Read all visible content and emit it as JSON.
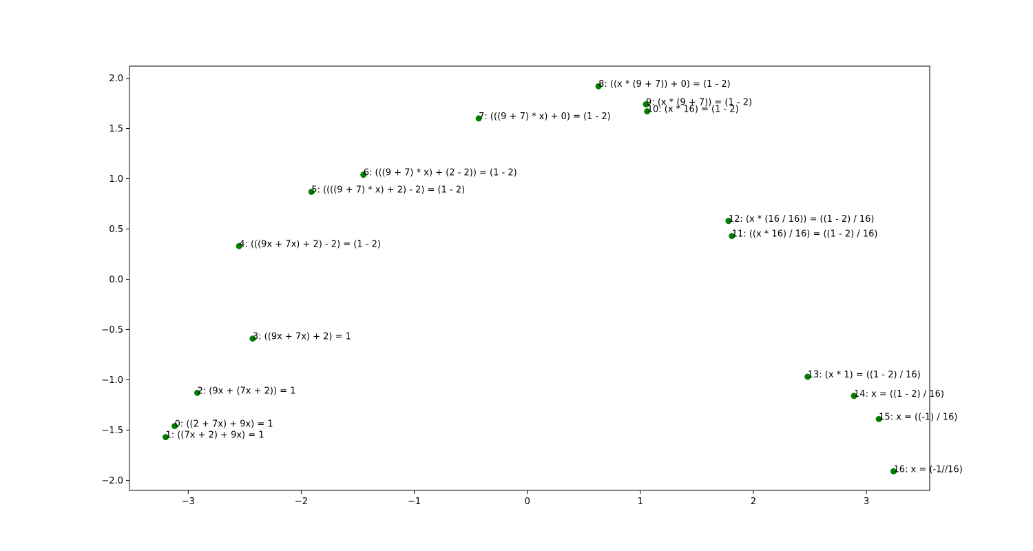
{
  "chart_data": {
    "type": "scatter",
    "title": "",
    "xlabel": "",
    "ylabel": "",
    "xlim": [
      -3.52,
      3.56
    ],
    "ylim": [
      -2.1,
      2.12
    ],
    "xticks": [
      -3,
      -2,
      -1,
      0,
      1,
      2,
      3
    ],
    "xtick_labels": [
      "−3",
      "−2",
      "−1",
      "0",
      "1",
      "2",
      "3"
    ],
    "yticks": [
      -2.0,
      -1.5,
      -1.0,
      -0.5,
      0.0,
      0.5,
      1.0,
      1.5,
      2.0
    ],
    "ytick_labels": [
      "−2.0",
      "−1.5",
      "−1.0",
      "−0.5",
      "0.0",
      "0.5",
      "1.0",
      "1.5",
      "2.0"
    ],
    "grid": false,
    "marker_color": "#008000",
    "points": [
      {
        "x": -3.12,
        "y": -1.46,
        "label": "0: ((2 + 7x) + 9x) = 1"
      },
      {
        "x": -3.2,
        "y": -1.57,
        "label": "1: ((7x + 2) + 9x) = 1"
      },
      {
        "x": -2.92,
        "y": -1.13,
        "label": "2: (9x + (7x + 2)) = 1"
      },
      {
        "x": -2.43,
        "y": -0.59,
        "label": "3: ((9x + 7x) + 2) = 1"
      },
      {
        "x": -2.55,
        "y": 0.33,
        "label": "4: (((9x + 7x) + 2) - 2) = (1 - 2)"
      },
      {
        "x": -1.91,
        "y": 0.87,
        "label": "5: ((((9 + 7) * x) + 2) - 2) = (1 - 2)"
      },
      {
        "x": -1.45,
        "y": 1.04,
        "label": "6: (((9 + 7) * x) + (2 - 2)) = (1 - 2)"
      },
      {
        "x": -0.43,
        "y": 1.6,
        "label": "7: (((9 + 7) * x) + 0) = (1 - 2)"
      },
      {
        "x": 0.63,
        "y": 1.92,
        "label": "8: ((x * (9 + 7)) + 0) = (1 - 2)"
      },
      {
        "x": 1.05,
        "y": 1.74,
        "label": "9: (x * (9 + 7)) = (1 - 2)"
      },
      {
        "x": 1.06,
        "y": 1.67,
        "label": "10: (x * 16) = (1 - 2)"
      },
      {
        "x": 1.81,
        "y": 0.43,
        "label": "11: ((x * 16) / 16) = ((1 - 2) / 16)"
      },
      {
        "x": 1.78,
        "y": 0.58,
        "label": "12: (x * (16 / 16)) = ((1 - 2) / 16)"
      },
      {
        "x": 2.48,
        "y": -0.97,
        "label": "13: (x * 1) = ((1 - 2) / 16)"
      },
      {
        "x": 2.89,
        "y": -1.16,
        "label": "14: x = ((1 - 2) / 16)"
      },
      {
        "x": 3.11,
        "y": -1.39,
        "label": "15: x = ((-1) / 16)"
      },
      {
        "x": 3.24,
        "y": -1.91,
        "label": "16: x = (-1//16)"
      }
    ]
  }
}
